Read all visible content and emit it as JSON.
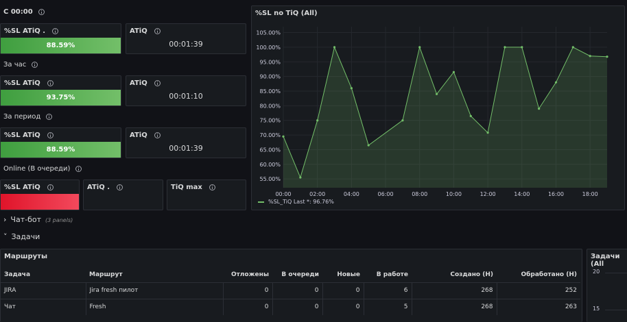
{
  "sections": {
    "s00": "С 00:00",
    "hour": "За час",
    "period": "За период",
    "online": "Online (В очереди)"
  },
  "stats": {
    "s00_sl": {
      "title": "%SL ATiQ .",
      "value": "88.59%"
    },
    "s00_atiq": {
      "title": "ATiQ",
      "value": "00:01:39"
    },
    "hour_sl": {
      "title": "%SL ATiQ",
      "value": "93.75%"
    },
    "hour_atiq": {
      "title": "ATiQ",
      "value": "00:01:10"
    },
    "period_sl": {
      "title": "%SL ATiQ",
      "value": "88.59%"
    },
    "period_atiq": {
      "title": "ATiQ",
      "value": "00:01:39"
    },
    "online_sl": {
      "title": "%SL ATiQ"
    },
    "online_atiq": {
      "title": "ATiQ ."
    },
    "online_tiqmax": {
      "title": "TiQ max"
    }
  },
  "rows": {
    "chatbot": {
      "label": "Чат-бот",
      "meta": "(3 panels)"
    },
    "tasks": {
      "label": "Задачи"
    }
  },
  "routes_panel": {
    "title": "Маршруты",
    "columns": [
      "Задача",
      "Маршрут",
      "Отложены",
      "В очереди",
      "Новые",
      "В работе",
      "Создано (Н)",
      "Обработано (Н)"
    ],
    "rows": [
      [
        "JIRA",
        "Jira fresh пилот",
        "0",
        "0",
        "0",
        "6",
        "268",
        "252"
      ],
      [
        "Чат",
        "Fresh",
        "0",
        "0",
        "0",
        "5",
        "268",
        "263"
      ]
    ]
  },
  "side_panel": {
    "title": "Задачи (All",
    "ticks": [
      "20",
      "15"
    ]
  },
  "chart_data": {
    "type": "area",
    "title": "%SL no TiQ (All)",
    "x_ticks": [
      "00:00",
      "02:00",
      "04:00",
      "06:00",
      "08:00",
      "10:00",
      "12:00",
      "14:00",
      "16:00",
      "18:00"
    ],
    "y_ticks": [
      "55.00%",
      "60.00%",
      "65.00%",
      "70.00%",
      "75.00%",
      "80.00%",
      "85.00%",
      "90.00%",
      "95.00%",
      "100.00%",
      "105.00%"
    ],
    "ylim": [
      52,
      107
    ],
    "xlim": [
      0,
      19
    ],
    "series": [
      {
        "name": "%SL_TiQ",
        "color": "#73bf69",
        "x": [
          0,
          1,
          2,
          3,
          4,
          5,
          7,
          8,
          9,
          10,
          11,
          12,
          13,
          14,
          15,
          16,
          17,
          18,
          19
        ],
        "values": [
          69.5,
          55.5,
          75,
          100,
          86,
          66.5,
          75,
          100,
          84,
          91.5,
          76.5,
          70.8,
          100,
          100,
          79,
          88,
          100,
          97,
          96.76
        ]
      }
    ],
    "legend": {
      "text": "%SL_TiQ  Last *: 96.76%",
      "placement": "bottom-left"
    },
    "grid": true
  }
}
